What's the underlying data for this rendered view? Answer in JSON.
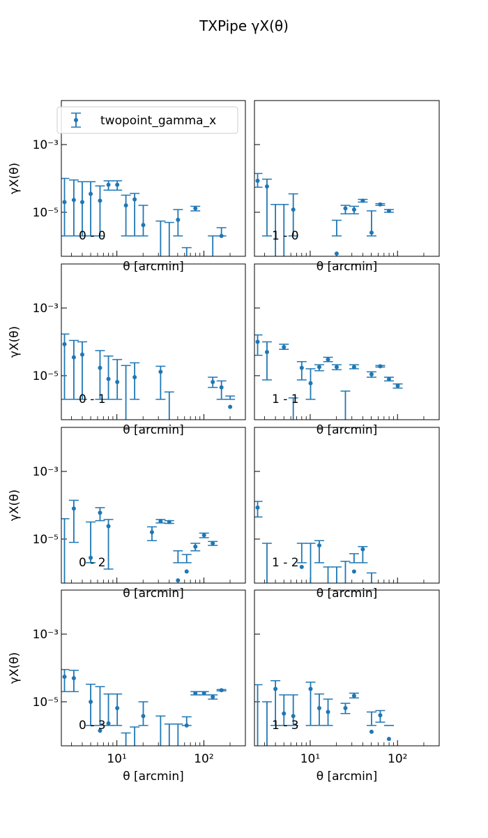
{
  "chart_data": {
    "type": "scatter",
    "title": "TXPipe γX(θ)",
    "xlabel": "θ [arcmin]",
    "ylabel": "γX(θ)",
    "x_scale": "log",
    "y_scale": "log",
    "xlim": [
      2.3,
      300
    ],
    "ylim": [
      5e-07,
      0.02
    ],
    "x_ticks": [
      {
        "value": 10,
        "label": "10¹"
      },
      {
        "value": 100,
        "label": "10²"
      }
    ],
    "y_ticks": [
      {
        "value": 0.001,
        "label": "10⁻³"
      },
      {
        "value": 1e-05,
        "label": "10⁻⁵"
      }
    ],
    "legend": {
      "label": "twopoint_gamma_x",
      "location": "upper-left",
      "panel": "0 - 0"
    },
    "color": "#1f77b4",
    "theta": [
      2.5,
      3.2,
      4.0,
      5.0,
      6.4,
      8.0,
      10.1,
      12.7,
      16.0,
      20.1,
      25.3,
      31.8,
      40.0,
      50.4,
      63.4,
      79.8,
      100.5,
      126.5,
      159.2,
      200.4,
      252.3
    ],
    "panels": [
      {
        "label": "0 - 0",
        "points": [
          [
            2.5,
            2e-05,
            0.0001,
            2e-06
          ],
          [
            3.2,
            2.3e-05,
            9e-05,
            2e-06
          ],
          [
            4.0,
            2e-05,
            8e-05,
            2e-06
          ],
          [
            5.0,
            3.5e-05,
            8e-05,
            2e-06
          ],
          [
            6.4,
            2.2e-05,
            6e-05,
            2e-06
          ],
          [
            8.0,
            6.5e-05,
            8.5e-05,
            4.5e-05
          ],
          [
            10.1,
            6.5e-05,
            8.5e-05,
            4.5e-05
          ],
          [
            12.7,
            1.6e-05,
            3.2e-05,
            2e-06
          ],
          [
            16.0,
            2.4e-05,
            3.6e-05,
            2e-06
          ],
          [
            20.1,
            4.2e-06,
            1.6e-05,
            2e-06
          ],
          [
            25.3,
            null,
            null,
            null
          ],
          [
            31.8,
            null,
            5.5e-06,
            2e-06
          ],
          [
            40.0,
            null,
            5e-06,
            2e-06
          ],
          [
            50.4,
            6e-06,
            1.2e-05,
            2e-06
          ],
          [
            63.4,
            null,
            9e-07,
            2e-06
          ],
          [
            79.8,
            1.3e-05,
            1.5e-05,
            1.1e-05
          ],
          [
            100.5,
            null,
            null,
            null
          ],
          [
            126.5,
            null,
            2e-06,
            2e-06
          ],
          [
            159.2,
            2e-06,
            3.5e-06,
            2e-06
          ],
          [
            200.4,
            null,
            null,
            null
          ],
          [
            252.3,
            null,
            null,
            null
          ]
        ]
      },
      {
        "label": "1 - 0",
        "points": [
          [
            2.5,
            8.5e-05,
            0.00014,
            5.5e-05
          ],
          [
            3.2,
            5.8e-05,
            9.5e-05,
            2e-06
          ],
          [
            4.0,
            null,
            1.7e-05,
            2e-06
          ],
          [
            5.0,
            null,
            1.7e-05,
            2e-06
          ],
          [
            6.4,
            1.2e-05,
            3.5e-05,
            2e-06
          ],
          [
            8.0,
            null,
            null,
            null
          ],
          [
            10.1,
            null,
            null,
            null
          ],
          [
            12.7,
            null,
            null,
            null
          ],
          [
            16.0,
            null,
            null,
            null
          ],
          [
            20.1,
            6e-07,
            5.8e-06,
            2e-06
          ],
          [
            25.3,
            1.3e-05,
            1.6e-05,
            9e-06
          ],
          [
            31.8,
            1.2e-05,
            1.5e-05,
            9e-06
          ],
          [
            40.0,
            2.2e-05,
            2.4e-05,
            2e-05
          ],
          [
            50.4,
            2.5e-06,
            1.1e-05,
            2e-06
          ],
          [
            63.4,
            1.7e-05,
            1.8e-05,
            1.6e-05
          ],
          [
            79.8,
            1.1e-05,
            1.2e-05,
            1e-05
          ],
          [
            100.5,
            null,
            null,
            null
          ],
          [
            126.5,
            null,
            null,
            null
          ],
          [
            159.2,
            null,
            null,
            null
          ],
          [
            200.4,
            null,
            null,
            null
          ],
          [
            252.3,
            null,
            null,
            null
          ]
        ]
      },
      {
        "label": "0 - 1",
        "points": [
          [
            2.5,
            8.5e-05,
            0.00017,
            2e-06
          ],
          [
            3.2,
            3.5e-05,
            0.00011,
            2e-06
          ],
          [
            4.0,
            4.2e-05,
            0.0001,
            2e-06
          ],
          [
            5.0,
            null,
            null,
            null
          ],
          [
            6.4,
            1.7e-05,
            5.5e-05,
            2e-06
          ],
          [
            8.0,
            8e-06,
            3.8e-05,
            2e-06
          ],
          [
            10.1,
            6.5e-06,
            3e-05,
            2e-06
          ],
          [
            12.7,
            null,
            2e-05,
            2e-06
          ],
          [
            16.0,
            9e-06,
            2.4e-05,
            2e-06
          ],
          [
            20.1,
            null,
            null,
            null
          ],
          [
            25.3,
            null,
            null,
            null
          ],
          [
            31.8,
            1.3e-05,
            1.9e-05,
            2e-06
          ],
          [
            40.0,
            null,
            3.3e-06,
            2e-06
          ],
          [
            50.4,
            null,
            null,
            null
          ],
          [
            63.4,
            null,
            null,
            null
          ],
          [
            79.8,
            null,
            null,
            null
          ],
          [
            100.5,
            null,
            null,
            null
          ],
          [
            126.5,
            6.5e-06,
            9e-06,
            4.5e-06
          ],
          [
            159.2,
            4.5e-06,
            7e-06,
            2e-06
          ],
          [
            200.4,
            1.2e-06,
            2.5e-06,
            2e-06
          ],
          [
            252.3,
            null,
            null,
            null
          ]
        ]
      },
      {
        "label": "1 - 1",
        "points": [
          [
            2.5,
            0.0001,
            0.00016,
            4e-05
          ],
          [
            3.2,
            5e-05,
            0.0001,
            7.5e-06
          ],
          [
            4.0,
            null,
            null,
            null
          ],
          [
            5.0,
            7e-05,
            8.5e-05,
            6e-05
          ],
          [
            6.4,
            null,
            2.2e-06,
            2e-06
          ],
          [
            8.0,
            1.7e-05,
            2.6e-05,
            7.5e-06
          ],
          [
            10.1,
            6e-06,
            1.6e-05,
            2e-06
          ],
          [
            12.7,
            1.8e-05,
            2.1e-05,
            1.4e-05
          ],
          [
            16.0,
            3e-05,
            3.5e-05,
            2.6e-05
          ],
          [
            20.1,
            1.8e-05,
            2.1e-05,
            1.5e-05
          ],
          [
            25.3,
            null,
            3.5e-06,
            2e-06
          ],
          [
            31.8,
            1.8e-05,
            2.1e-05,
            1.6e-05
          ],
          [
            40.0,
            null,
            null,
            null
          ],
          [
            50.4,
            1.1e-05,
            1.3e-05,
            9e-06
          ],
          [
            63.4,
            1.9e-05,
            2e-05,
            1.8e-05
          ],
          [
            79.8,
            8e-06,
            9e-06,
            7e-06
          ],
          [
            100.5,
            5e-06,
            5.7e-06,
            4.3e-06
          ],
          [
            126.5,
            null,
            null,
            null
          ],
          [
            159.2,
            null,
            null,
            null
          ],
          [
            200.4,
            null,
            null,
            null
          ],
          [
            252.3,
            null,
            null,
            null
          ]
        ]
      },
      {
        "label": "0 - 2",
        "points": [
          [
            2.5,
            null,
            4e-05,
            2e-06
          ],
          [
            3.2,
            8e-05,
            0.00014,
            8e-06
          ],
          [
            4.0,
            null,
            null,
            null
          ],
          [
            5.0,
            2.8e-06,
            3.2e-05,
            2e-06
          ],
          [
            6.4,
            6e-05,
            8.5e-05,
            3.5e-05
          ],
          [
            8.0,
            2.4e-05,
            3.8e-05,
            1.3e-06
          ],
          [
            10.1,
            null,
            null,
            null
          ],
          [
            12.7,
            null,
            null,
            null
          ],
          [
            16.0,
            null,
            null,
            null
          ],
          [
            20.1,
            null,
            null,
            null
          ],
          [
            25.3,
            1.6e-05,
            2.3e-05,
            9e-06
          ],
          [
            31.8,
            3.4e-05,
            3.8e-05,
            3e-05
          ],
          [
            40.0,
            3.2e-05,
            3.5e-05,
            2.9e-05
          ],
          [
            50.4,
            6e-07,
            4.5e-06,
            2e-06
          ],
          [
            63.4,
            1.1e-06,
            3.5e-06,
            2e-06
          ],
          [
            79.8,
            6e-06,
            7.5e-06,
            4.5e-06
          ],
          [
            100.5,
            1.3e-05,
            1.5e-05,
            1.1e-05
          ],
          [
            126.5,
            7.5e-06,
            8.5e-06,
            6.5e-06
          ],
          [
            159.2,
            null,
            null,
            null
          ],
          [
            200.4,
            null,
            null,
            null
          ],
          [
            252.3,
            null,
            null,
            null
          ]
        ]
      },
      {
        "label": "1 - 2",
        "points": [
          [
            2.5,
            8.5e-05,
            0.00013,
            4.5e-05
          ],
          [
            3.2,
            null,
            7.5e-06,
            2e-06
          ],
          [
            4.0,
            null,
            null,
            null
          ],
          [
            5.0,
            null,
            null,
            null
          ],
          [
            6.4,
            null,
            null,
            null
          ],
          [
            8.0,
            1.5e-06,
            7.5e-06,
            2e-06
          ],
          [
            10.1,
            null,
            7.5e-06,
            2e-06
          ],
          [
            12.7,
            6.5e-06,
            9e-06,
            2e-06
          ],
          [
            16.0,
            null,
            1.5e-06,
            2e-06
          ],
          [
            20.1,
            null,
            1.5e-06,
            2e-06
          ],
          [
            25.3,
            null,
            2.2e-06,
            2e-06
          ],
          [
            31.8,
            1.1e-06,
            3.7e-06,
            2e-06
          ],
          [
            40.0,
            5e-06,
            6e-06,
            2e-06
          ],
          [
            50.4,
            null,
            1e-06,
            2e-06
          ],
          [
            63.4,
            null,
            null,
            null
          ],
          [
            79.8,
            null,
            null,
            null
          ],
          [
            100.5,
            null,
            null,
            null
          ],
          [
            126.5,
            null,
            null,
            null
          ],
          [
            159.2,
            null,
            null,
            null
          ],
          [
            200.4,
            null,
            null,
            null
          ],
          [
            252.3,
            null,
            null,
            null
          ]
        ]
      },
      {
        "label": "0 - 3",
        "points": [
          [
            2.5,
            5.5e-05,
            9e-05,
            2e-05
          ],
          [
            3.2,
            5e-05,
            8.5e-05,
            2e-05
          ],
          [
            4.0,
            null,
            null,
            null
          ],
          [
            5.0,
            1e-05,
            3.3e-05,
            2e-06
          ],
          [
            6.4,
            1.4e-06,
            2.8e-05,
            2e-06
          ],
          [
            8.0,
            2.3e-06,
            1.7e-05,
            2e-06
          ],
          [
            10.1,
            6.5e-06,
            1.7e-05,
            2e-06
          ],
          [
            12.7,
            null,
            1.2e-06,
            2e-06
          ],
          [
            16.0,
            null,
            1.8e-06,
            2e-06
          ],
          [
            20.1,
            3.8e-06,
            1e-05,
            2e-06
          ],
          [
            25.3,
            null,
            null,
            null
          ],
          [
            31.8,
            null,
            3.8e-06,
            2e-06
          ],
          [
            40.0,
            null,
            2.2e-06,
            2e-06
          ],
          [
            50.4,
            null,
            2.2e-06,
            2e-06
          ],
          [
            63.4,
            2e-06,
            3.6e-06,
            2e-06
          ],
          [
            79.8,
            1.8e-05,
            2e-05,
            1.6e-05
          ],
          [
            100.5,
            1.8e-05,
            2e-05,
            1.6e-05
          ],
          [
            126.5,
            1.4e-05,
            1.6e-05,
            1.2e-05
          ],
          [
            159.2,
            2.2e-05,
            2.3e-05,
            2.1e-05
          ],
          [
            200.4,
            null,
            null,
            null
          ],
          [
            252.3,
            null,
            null,
            null
          ]
        ]
      },
      {
        "label": "1 - 3",
        "points": [
          [
            2.5,
            null,
            3.2e-05,
            2e-06
          ],
          [
            3.2,
            null,
            1e-05,
            2e-06
          ],
          [
            4.0,
            2.4e-05,
            4.2e-05,
            2e-06
          ],
          [
            5.0,
            4.5e-06,
            1.6e-05,
            2e-06
          ],
          [
            6.4,
            3.8e-06,
            1.6e-05,
            2e-06
          ],
          [
            8.0,
            null,
            null,
            null
          ],
          [
            10.1,
            2.4e-05,
            3.8e-05,
            2e-06
          ],
          [
            12.7,
            6.5e-06,
            1.7e-05,
            2e-06
          ],
          [
            16.0,
            5e-06,
            1.2e-05,
            2e-06
          ],
          [
            20.1,
            null,
            null,
            null
          ],
          [
            25.3,
            6.5e-06,
            9e-06,
            4.5e-06
          ],
          [
            31.8,
            1.5e-05,
            1.8e-05,
            1.3e-05
          ],
          [
            40.0,
            null,
            null,
            null
          ],
          [
            50.4,
            1.3e-06,
            5e-06,
            2e-06
          ],
          [
            63.4,
            4e-06,
            5.5e-06,
            2.5e-06
          ],
          [
            79.8,
            8e-07,
            2e-06,
            2e-06
          ],
          [
            100.5,
            null,
            null,
            null
          ],
          [
            126.5,
            null,
            null,
            null
          ],
          [
            159.2,
            null,
            null,
            null
          ],
          [
            200.4,
            null,
            null,
            null
          ],
          [
            252.3,
            null,
            null,
            null
          ]
        ]
      }
    ]
  }
}
